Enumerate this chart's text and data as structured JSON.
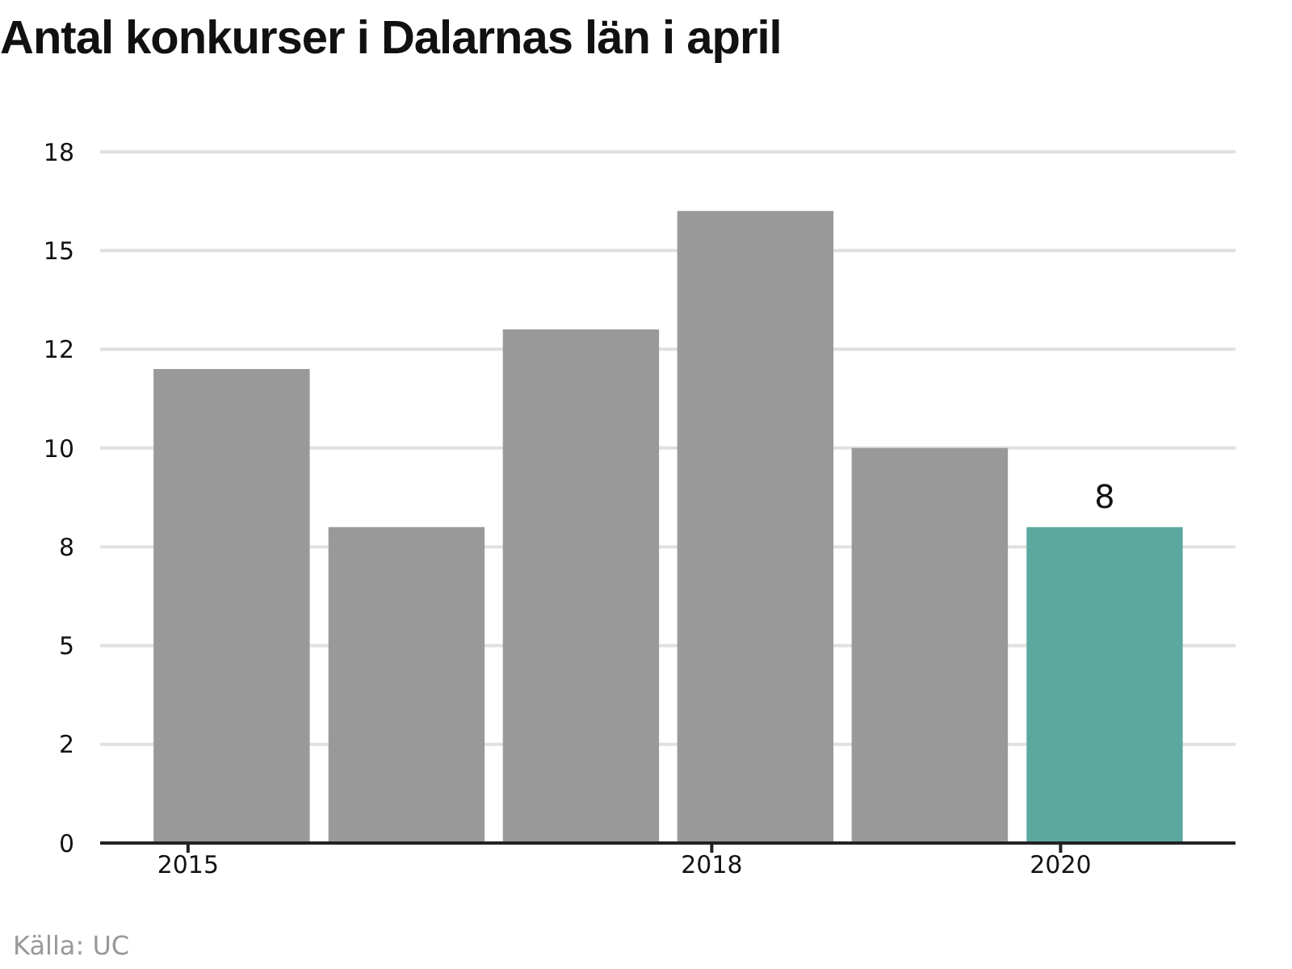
{
  "chart_data": {
    "type": "bar",
    "title": "Antal konkurser i Dalarnas län i april",
    "x": [
      "2015-04",
      "2016-04",
      "2017-04",
      "2018-04",
      "2019-04",
      "2020-04"
    ],
    "xlim": [
      "2014-07",
      "2021-01"
    ],
    "xticks": [
      "2015",
      "2018",
      "2020"
    ],
    "values": [
      12,
      8,
      13,
      16,
      10,
      8
    ],
    "colors": [
      "#999999",
      "#999999",
      "#999999",
      "#999999",
      "#999999",
      "#5ca89e"
    ],
    "value_labels": [
      null,
      null,
      null,
      null,
      null,
      "8"
    ],
    "ylim": [
      0,
      17.5
    ],
    "yticks": [
      0,
      {
        "value": 2.5,
        "label": "2"
      },
      5,
      {
        "value": 7.5,
        "label": "8"
      },
      10,
      {
        "value": 12.5,
        "label": "12"
      },
      15,
      {
        "value": 17.5,
        "label": "18"
      }
    ],
    "grid": "y",
    "annotations": [
      "Källa: UC"
    ]
  }
}
